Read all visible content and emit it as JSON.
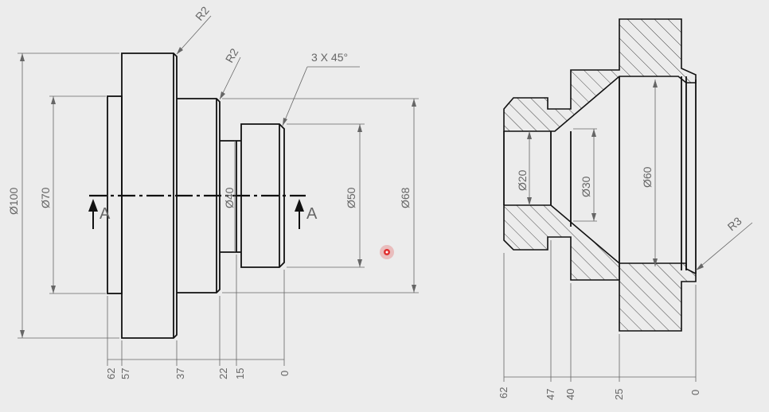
{
  "front_view": {
    "diameters": [
      "Ø100",
      "Ø70",
      "Ø40",
      "Ø50",
      "Ø68"
    ],
    "radius_notes": [
      "R2",
      "R2"
    ],
    "chamfer_note": "3 X 45°",
    "section_letter": "A",
    "baseline_labels": [
      "62",
      "57",
      "37",
      "22",
      "15",
      "0"
    ]
  },
  "section_view": {
    "diameters": [
      "Ø20",
      "Ø30",
      "Ø60"
    ],
    "radius_note": "R3",
    "baseline_labels": [
      "62",
      "47",
      "40",
      "25",
      "0"
    ]
  },
  "cursor": {
    "color": "#e03030"
  },
  "colors": {
    "background": "#ececec",
    "line": "#111111",
    "dimension": "#666666"
  }
}
